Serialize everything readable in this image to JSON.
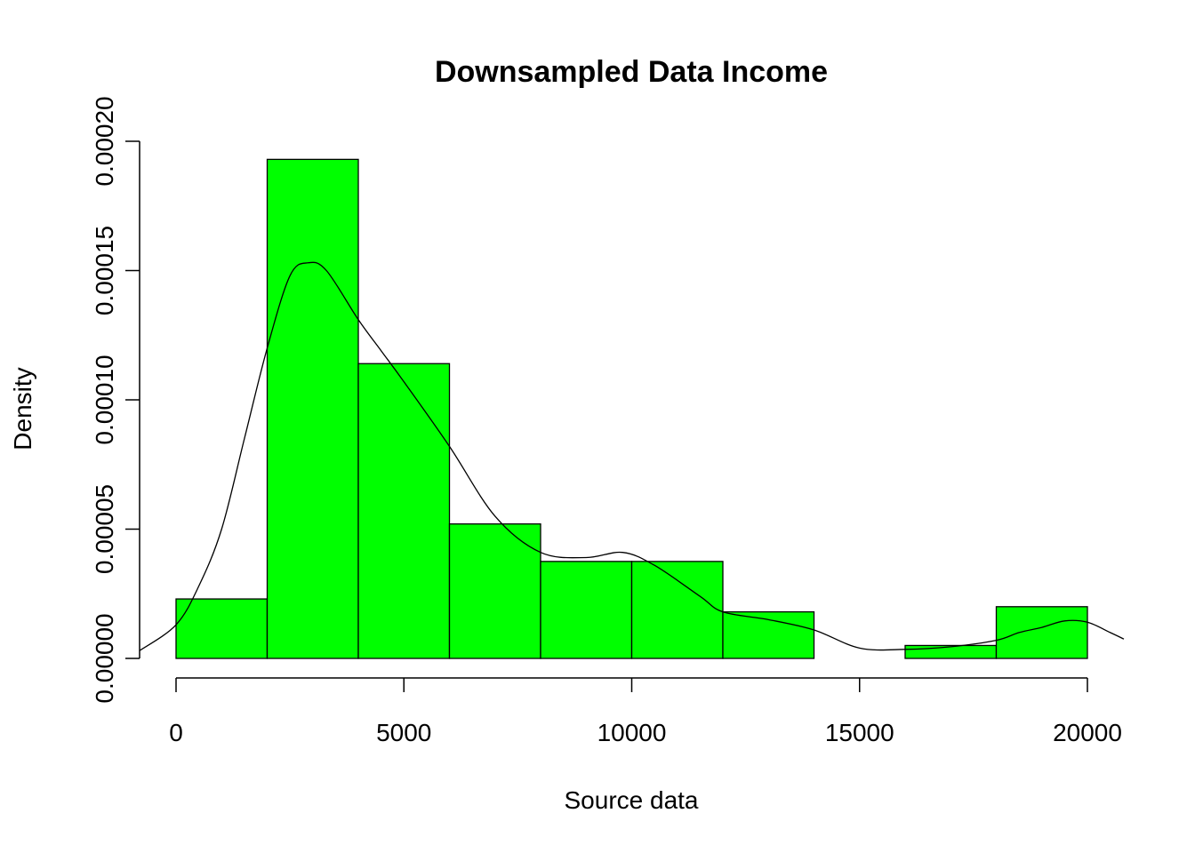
{
  "chart_data": {
    "type": "bar",
    "title": "Downsampled Data Income",
    "xlabel": "Source data",
    "ylabel": "Density",
    "xlim": [
      -800,
      20800
    ],
    "ylim": [
      0,
      0.0002
    ],
    "x_ticks": [
      {
        "value": 0,
        "label": "0"
      },
      {
        "value": 5000,
        "label": "5000"
      },
      {
        "value": 10000,
        "label": "10000"
      },
      {
        "value": 15000,
        "label": "15000"
      },
      {
        "value": 20000,
        "label": "20000"
      }
    ],
    "y_ticks": [
      {
        "value": 0,
        "label": "0.00000"
      },
      {
        "value": 5e-05,
        "label": "0.00005"
      },
      {
        "value": 0.0001,
        "label": "0.00010"
      },
      {
        "value": 0.00015,
        "label": "0.00015"
      },
      {
        "value": 0.0002,
        "label": "0.00020"
      }
    ],
    "bin_width": 2000,
    "bins": [
      {
        "start": 0,
        "end": 2000,
        "density": 2.3e-05
      },
      {
        "start": 2000,
        "end": 4000,
        "density": 0.000193
      },
      {
        "start": 4000,
        "end": 6000,
        "density": 0.000114
      },
      {
        "start": 6000,
        "end": 8000,
        "density": 5.2e-05
      },
      {
        "start": 8000,
        "end": 10000,
        "density": 3.75e-05
      },
      {
        "start": 10000,
        "end": 12000,
        "density": 3.75e-05
      },
      {
        "start": 12000,
        "end": 14000,
        "density": 1.8e-05
      },
      {
        "start": 14000,
        "end": 16000,
        "density": 0
      },
      {
        "start": 16000,
        "end": 18000,
        "density": 5e-06
      },
      {
        "start": 18000,
        "end": 20000,
        "density": 2e-05
      }
    ],
    "density_curve": {
      "x": [
        -800,
        0,
        500,
        1000,
        1500,
        2000,
        2500,
        2900,
        3300,
        4000,
        4500,
        5000,
        6000,
        7000,
        8000,
        9000,
        9800,
        10500,
        11500,
        12000,
        13000,
        14000,
        15000,
        16000,
        17000,
        18000,
        18500,
        19000,
        19500,
        20000,
        20500,
        20800
      ],
      "y": [
        3e-06,
        1.3e-05,
        2.8e-05,
        5e-05,
        8.5e-05,
        0.00012,
        0.000148,
        0.000153,
        0.00015,
        0.000131,
        0.000119,
        0.000107,
        8.2e-05,
        5.5e-05,
        4.1e-05,
        3.9e-05,
        4.1e-05,
        3.6e-05,
        2.4e-05,
        1.8e-05,
        1.5e-05,
        1.1e-05,
        4e-06,
        3.5e-06,
        4.5e-06,
        7e-06,
        1e-05,
        1.2e-05,
        1.45e-05,
        1.4e-05,
        1e-05,
        7.5e-06
      ]
    },
    "colors": {
      "bar_fill": "#00FF00",
      "bar_stroke": "#000000",
      "curve": "#000000",
      "background": "#FFFFFF"
    },
    "grid": false,
    "legend": "none"
  }
}
